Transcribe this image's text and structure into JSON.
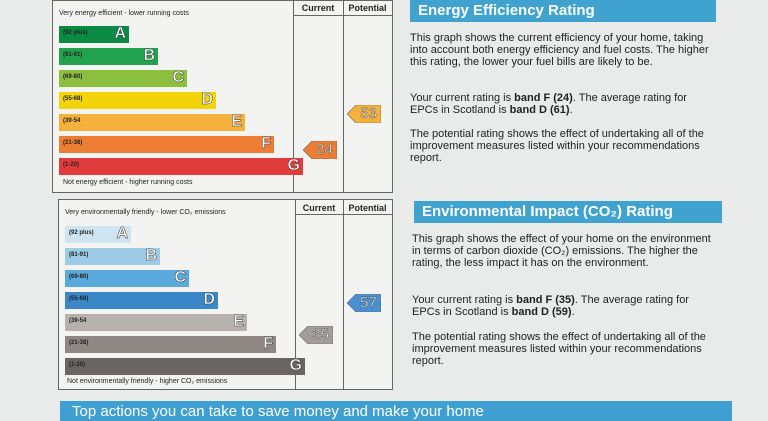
{
  "energy": {
    "headers": {
      "current": "Current",
      "potential": "Potential"
    },
    "top_caption": "Very energy efficient - lower running costs",
    "bottom_caption": "Not energy efficient - higher running costs",
    "bands": [
      {
        "range": "(92 plus)",
        "letter": "A",
        "color": "#0b8a44"
      },
      {
        "range": "(81-91)",
        "letter": "B",
        "color": "#22a24c"
      },
      {
        "range": "(69-80)",
        "letter": "C",
        "color": "#8dbf3f"
      },
      {
        "range": "(55-68)",
        "letter": "D",
        "color": "#f2d40a"
      },
      {
        "range": "(39-54",
        "letter": "E",
        "color": "#f4b13c"
      },
      {
        "range": "(21-38)",
        "letter": "F",
        "color": "#ed7d32"
      },
      {
        "range": "(1-20)",
        "letter": "G",
        "color": "#e23b3b"
      }
    ],
    "current": {
      "value": "24",
      "color": "#ed7d32"
    },
    "potential": {
      "value": "53",
      "color": "#f4b13c"
    },
    "title": "Energy Efficiency Rating",
    "title_color": "#3fa2cf",
    "p1": "This graph shows the current efficiency of your home, taking into account both energy efficiency and fuel costs. The higher this rating, the lower your fuel bills are likely to be.",
    "p2_prefix": "Your current rating is ",
    "p2_band": "band F (24)",
    "p2_mid": ". The average rating for EPCs in Scotland is ",
    "p2_avg": "band D (61)",
    "p2_end": ".",
    "p3": "The potential rating shows the effect of undertaking all of the improvement measures listed within your recommendations report."
  },
  "environment": {
    "headers": {
      "current": "Current",
      "potential": "Potential"
    },
    "top_caption": "Very environmentally friendly - lower CO₂ emissions",
    "bottom_caption": "Not environmentally friendly - higher CO₂ emissions",
    "bands": [
      {
        "range": "(92 plus)",
        "letter": "A",
        "color": "#cfe4f1"
      },
      {
        "range": "(81-91)",
        "letter": "B",
        "color": "#9ccbe7"
      },
      {
        "range": "(69-80)",
        "letter": "C",
        "color": "#5aa9dc"
      },
      {
        "range": "(55-68)",
        "letter": "D",
        "color": "#3b86c7"
      },
      {
        "range": "(39-54",
        "letter": "E",
        "color": "#b7b1ad"
      },
      {
        "range": "(21-38)",
        "letter": "F",
        "color": "#8e8784"
      },
      {
        "range": "(1-20)",
        "letter": "G",
        "color": "#6a6462"
      }
    ],
    "current": {
      "value": "35",
      "color": "#a39c98"
    },
    "potential": {
      "value": "57",
      "color": "#4a8fcf"
    },
    "title": "Environmental Impact (CO₂) Rating",
    "title_color": "#3fa2cf",
    "p1": "This graph shows the effect of your home on the environment in terms of carbon dioxide (CO₂) emissions. The higher the rating, the less impact it has on the environment.",
    "p2_prefix": "Your current rating is ",
    "p2_band": "band F (35)",
    "p2_mid": ". The average rating for EPCs in Scotland is ",
    "p2_avg": "band D (59)",
    "p2_end": ".",
    "p3": "The potential rating shows the effect of undertaking all of the improvement measures listed within your recommendations report."
  },
  "bottom_bar": "Top actions you can take to save money and make your home"
}
